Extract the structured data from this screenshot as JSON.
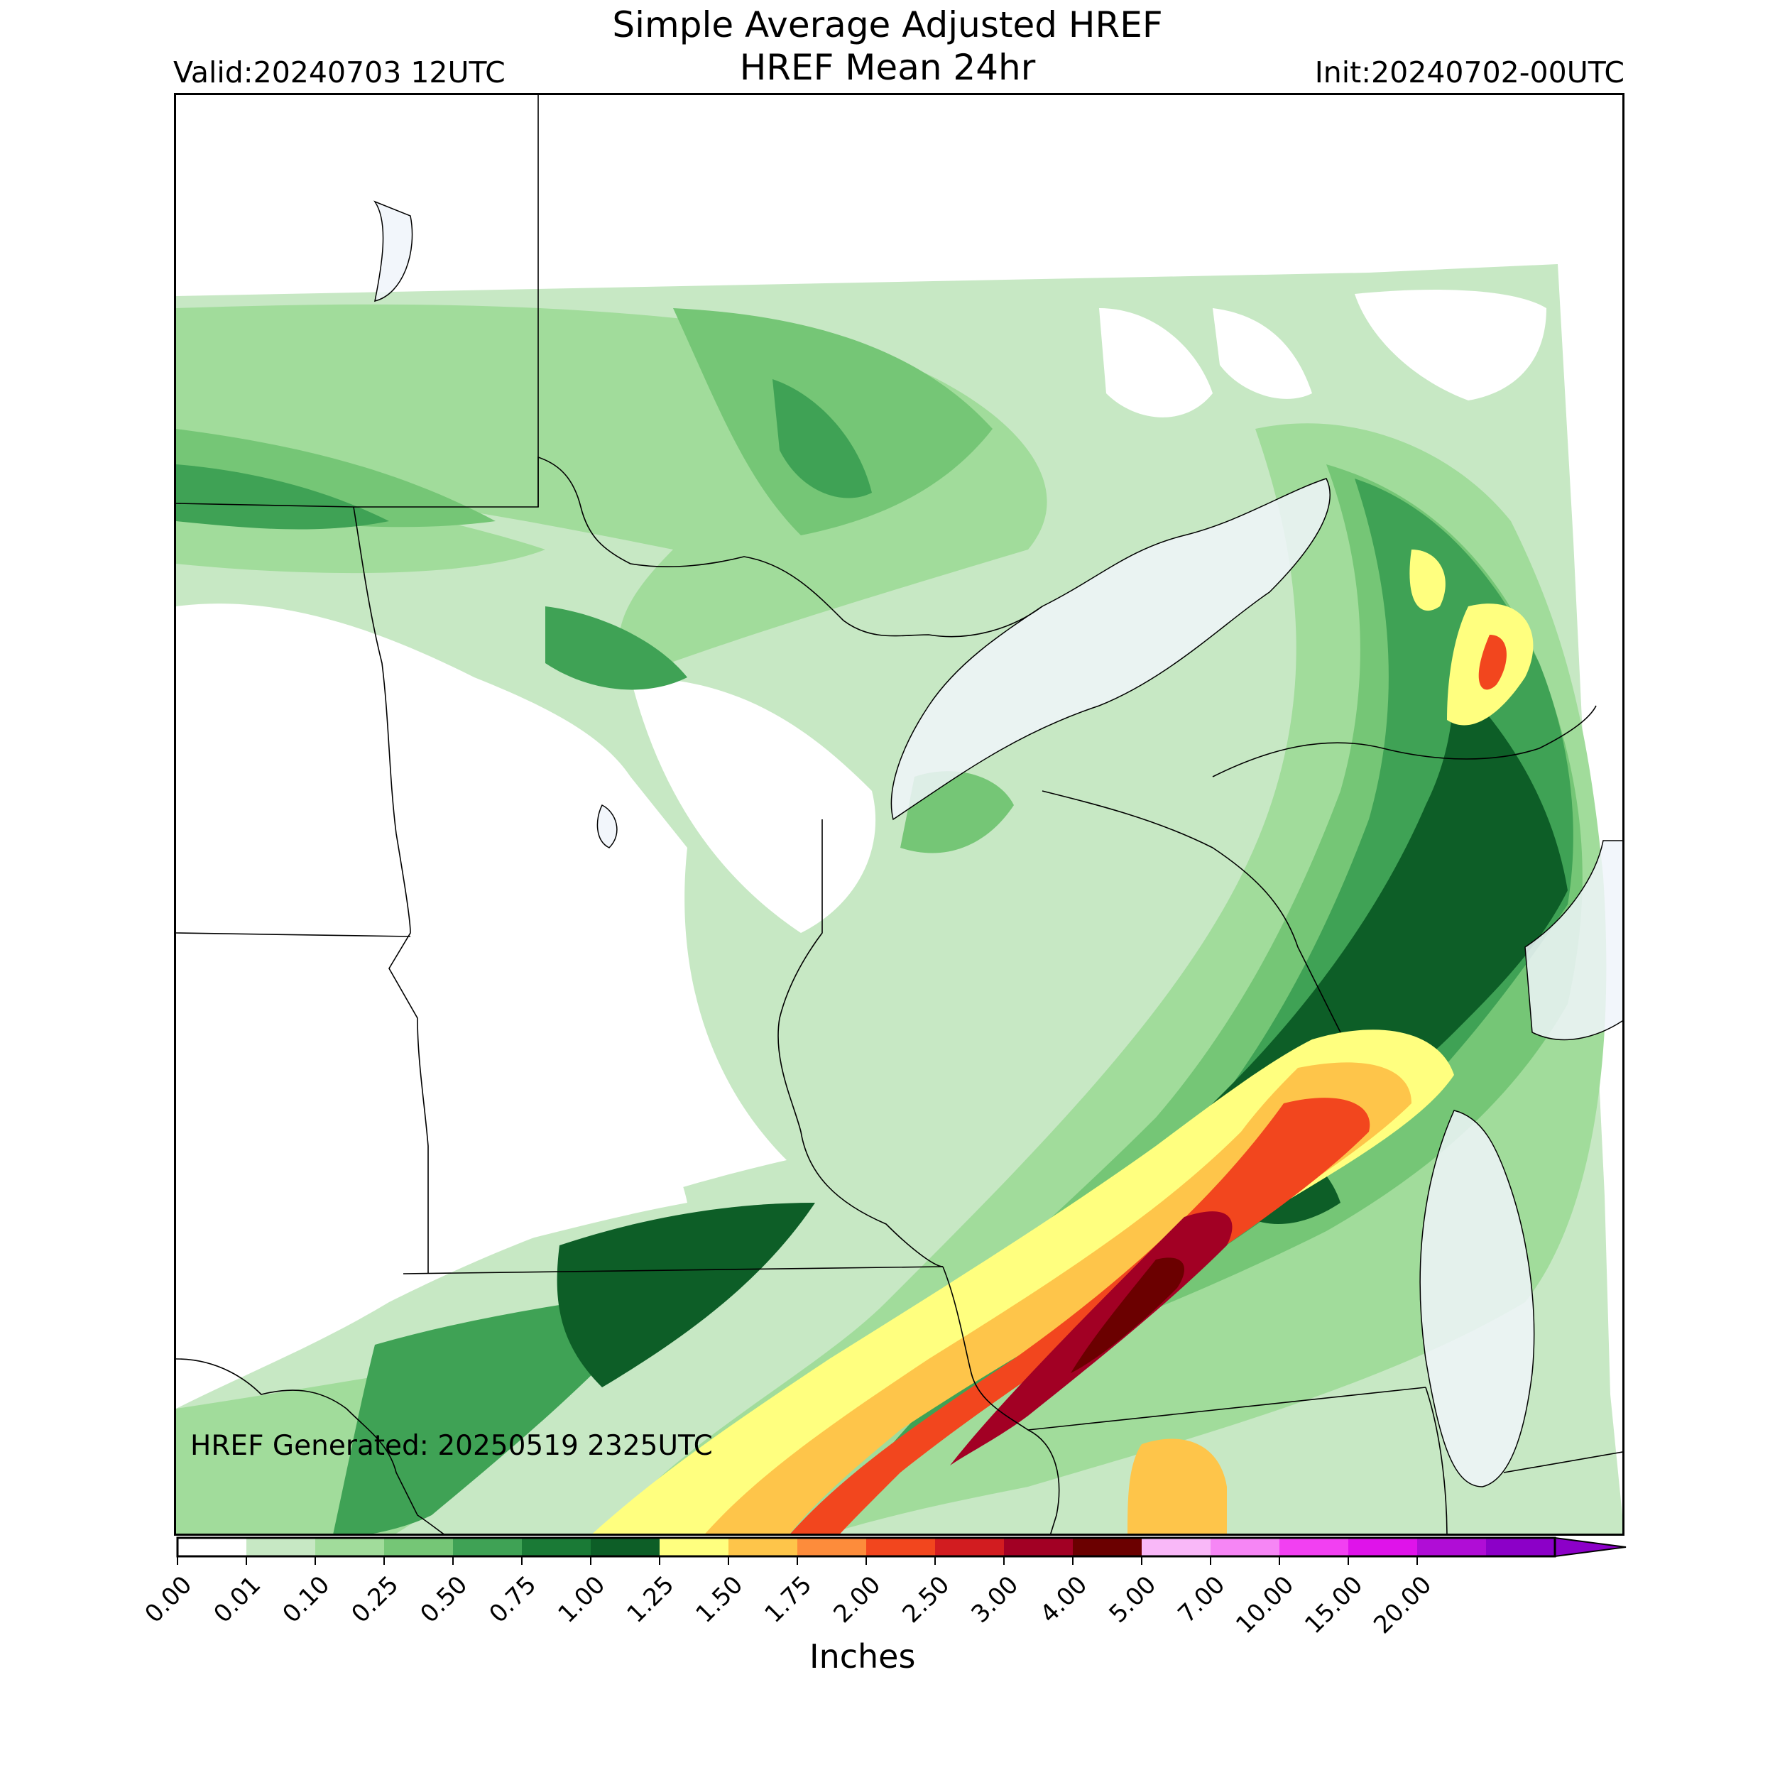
{
  "header": {
    "title_line1": "Simple Average Adjusted HREF",
    "title_line2": "HREF Mean 24hr",
    "valid": "Valid:20240703 12UTC",
    "init": "Init:20240702-00UTC"
  },
  "map": {
    "generated": "HREF Generated: 20250519 2325UTC",
    "water_color": "#f0f4fa",
    "border_color": "#000000"
  },
  "colorbar": {
    "label": "Inches",
    "ticks": [
      "0.00",
      "0.01",
      "0.10",
      "0.25",
      "0.50",
      "0.75",
      "1.00",
      "1.25",
      "1.50",
      "1.75",
      "2.00",
      "2.50",
      "3.00",
      "4.00",
      "5.00",
      "7.00",
      "10.00",
      "15.00",
      "20.00"
    ],
    "colors": [
      "#ffffff",
      "#c7e8c4",
      "#a1dc9b",
      "#75c676",
      "#3fa255",
      "#1a7a36",
      "#0d5e27",
      "#ffff7f",
      "#fec54a",
      "#fd8c3b",
      "#f2461e",
      "#d21c20",
      "#a20024",
      "#6b0000",
      "#f9b8f8",
      "#f686f5",
      "#f240f2",
      "#df13ea",
      "#b00dd6",
      "#8c00c8"
    ],
    "extend_color": "#8c00c8"
  }
}
